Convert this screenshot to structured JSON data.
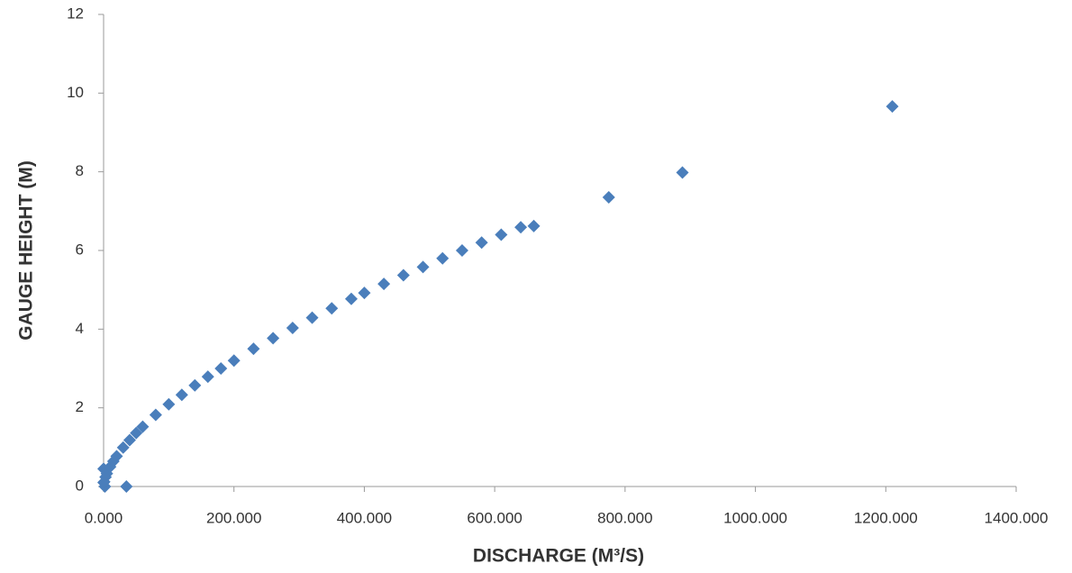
{
  "chart_data": {
    "type": "scatter",
    "x_label": "DISCHARGE (M³/S)",
    "y_label": "GAUGE HEIGHT (M)",
    "xlim": [
      0,
      1400
    ],
    "ylim": [
      0,
      12
    ],
    "xticks": [
      {
        "value": 0,
        "label": "0.000"
      },
      {
        "value": 200,
        "label": "200.000"
      },
      {
        "value": 400,
        "label": "400.000"
      },
      {
        "value": 600,
        "label": "600.000"
      },
      {
        "value": 800,
        "label": "800.000"
      },
      {
        "value": 1000,
        "label": "1000.000"
      },
      {
        "value": 1200,
        "label": "1200.000"
      },
      {
        "value": 1400,
        "label": "1400.000"
      }
    ],
    "yticks": [
      0,
      2,
      4,
      6,
      8,
      10,
      12
    ],
    "grid": false,
    "color": "#4a7ebb",
    "x": [
      0,
      2,
      0,
      1,
      3,
      5,
      10,
      15,
      20,
      30,
      40,
      50,
      60,
      80,
      100,
      120,
      140,
      160,
      180,
      200,
      230,
      260,
      290,
      320,
      350,
      380,
      400,
      430,
      460,
      490,
      520,
      550,
      580,
      610,
      640,
      660,
      35,
      775,
      888,
      1210
    ],
    "values": [
      0.45,
      0,
      0.1,
      0.12,
      0.24,
      0.33,
      0.5,
      0.64,
      0.77,
      0.99,
      1.18,
      1.36,
      1.52,
      1.82,
      2.09,
      2.33,
      2.57,
      2.79,
      3.0,
      3.2,
      3.5,
      3.77,
      4.03,
      4.29,
      4.53,
      4.77,
      4.92,
      5.15,
      5.37,
      5.58,
      5.8,
      6.0,
      6.2,
      6.4,
      6.59,
      6.62,
      0,
      7.35,
      7.98,
      9.66
    ]
  }
}
